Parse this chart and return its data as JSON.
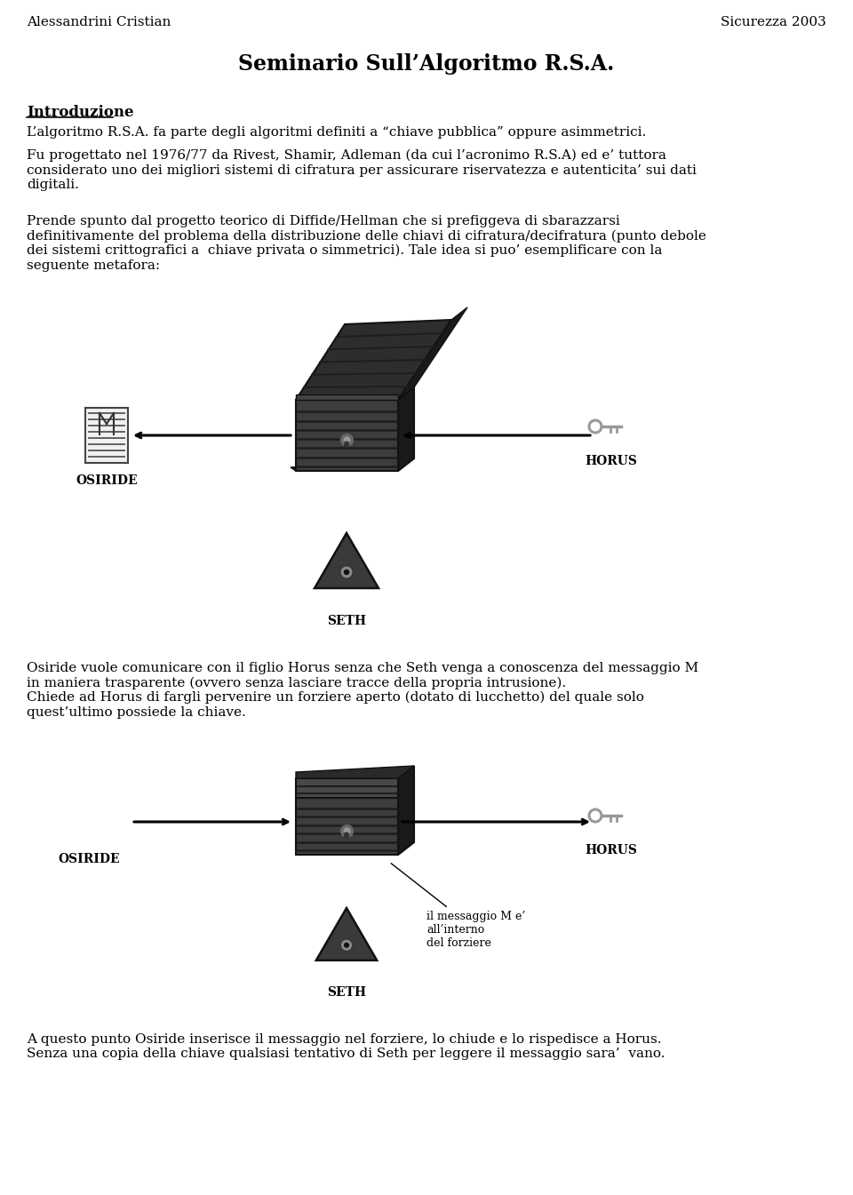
{
  "header_left": "Alessandrini Cristian",
  "header_right": "Sicurezza 2003",
  "title": "Seminario Sull’Algoritmo R.S.A.",
  "section1": "Introduzione",
  "para1": "L’algoritmo R.S.A. fa parte degli algoritmi definiti a “chiave pubblica” oppure asimmetrici.",
  "para2": "Fu progettato nel 1976/77 da Rivest, Shamir, Adleman (da cui l’acronimo R.S.A) ed e’ tuttora\nconsiderato uno dei migliori sistemi di cifratura per assicurare riservatezza e autenticita’ sui dati\ndigitali.",
  "para3": "Prende spunto dal progetto teorico di Diffide/Hellman che si prefiggeva di sbarazzarsi\ndefinitivamente del problema della distribuzione delle chiavi di cifratura/decifratura (punto debole\ndei sistemi crittografici a  chiave privata o simmetrici). Tale idea si puo’ esemplificare con la\nseguente metafora:",
  "label_osiride": "OSIRIDE",
  "label_horus": "HORUS",
  "label_seth": "SETH",
  "para4": "Osiride vuole comunicare con il figlio Horus senza che Seth venga a conoscenza del messaggio M\nin maniera trasparente (ovvero senza lasciare tracce della propria intrusione).\nChiede ad Horus di fargli pervenire un forziere aperto (dotato di lucchetto) del quale solo\nquest’ultimo possiede la chiave.",
  "annotation": "il messaggio M e’\nall’interno\ndel forziere",
  "para5": "A questo punto Osiride inserisce il messaggio nel forziere, lo chiude e lo rispedisce a Horus.\nSenza una copia della chiave qualsiasi tentativo di Seth per leggere il messaggio sara’  vano.",
  "bg_color": "#ffffff",
  "text_color": "#000000",
  "key_color": "#999999",
  "chest_dark": "#2d2d2d",
  "chest_mid": "#3d3d3d",
  "chest_light": "#555555",
  "chest_edge": "#111111",
  "chest_stripe": "#1e1e1e",
  "chest_side": "#1a1a1a"
}
